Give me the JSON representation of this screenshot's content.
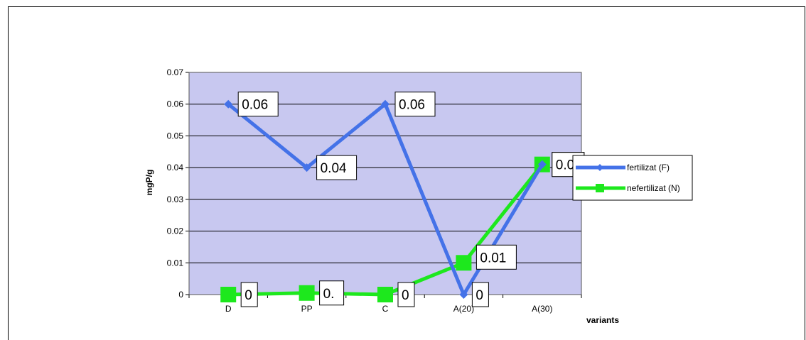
{
  "chart_data": {
    "type": "line",
    "title": "",
    "xlabel": "variants",
    "ylabel": "mgP/g",
    "categories": [
      "D",
      "PP",
      "C",
      "A(20)",
      "A(30)"
    ],
    "ylim": [
      0,
      0.07
    ],
    "yticks": [
      "0",
      "0.01",
      "0.02",
      "0.03",
      "0.04",
      "0.05",
      "0.06",
      "0.07"
    ],
    "grid": true,
    "legend_position": "right",
    "series": [
      {
        "name": "fertilizat (F)",
        "color": "#4472e8",
        "marker": "diamond",
        "values": [
          0.06,
          0.04,
          0.06,
          0,
          0.041
        ],
        "labels": [
          "0.06",
          "0.04",
          "0.06",
          "0",
          "0.0"
        ]
      },
      {
        "name": "nefertilizat (N)",
        "color": "#1de81d",
        "marker": "square",
        "values": [
          0,
          0.0005,
          0,
          0.01,
          0.041
        ],
        "labels": [
          "0",
          "0.",
          "0",
          "0.01",
          "0.0"
        ]
      }
    ],
    "plot_background": "#c8c8f0"
  }
}
